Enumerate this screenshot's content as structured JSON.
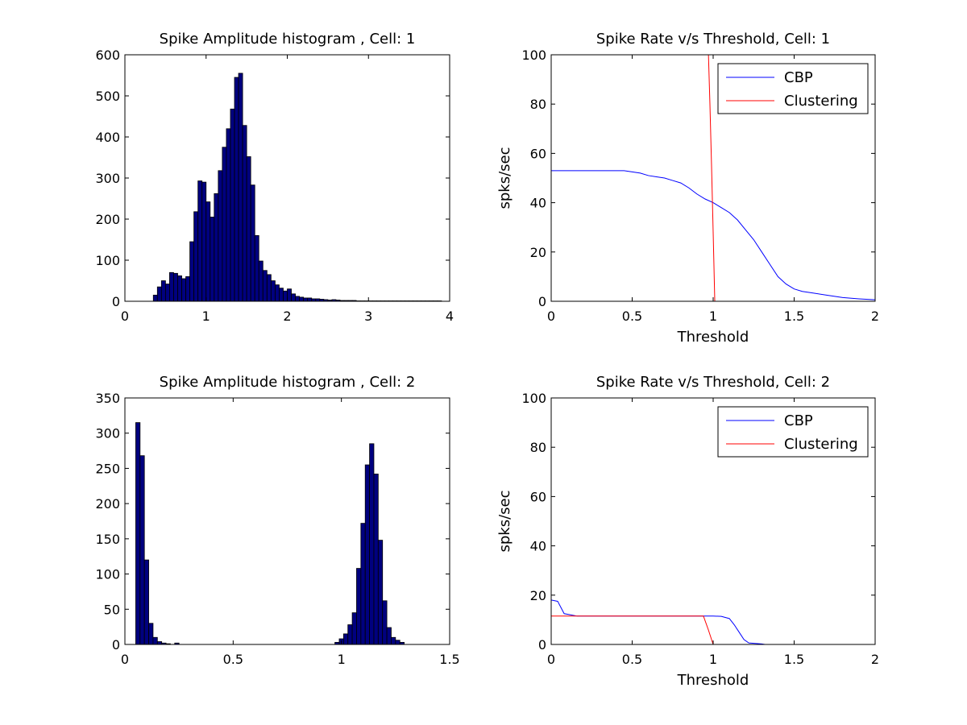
{
  "chart_data": [
    {
      "type": "bar",
      "title": "Spike Amplitude histogram , Cell: 1",
      "xlabel": "",
      "ylabel": "",
      "xlim": [
        0,
        4
      ],
      "ylim": [
        0,
        600
      ],
      "xticks": [
        "0",
        "1",
        "2",
        "3",
        "4"
      ],
      "yticks": [
        "0",
        "100",
        "200",
        "300",
        "400",
        "500",
        "600"
      ],
      "bin_start": 0.35,
      "bin_width": 0.05,
      "values": [
        15,
        35,
        50,
        42,
        70,
        68,
        62,
        55,
        60,
        145,
        218,
        293,
        290,
        242,
        205,
        262,
        318,
        375,
        420,
        468,
        545,
        555,
        428,
        352,
        283,
        160,
        98,
        75,
        65,
        50,
        40,
        32,
        25,
        30,
        18,
        12,
        10,
        8,
        8,
        6,
        6,
        5,
        4,
        3,
        4,
        3,
        2,
        2,
        2,
        2,
        1,
        1,
        1,
        1,
        1,
        1,
        1,
        1,
        1,
        1,
        1,
        1,
        1,
        1,
        1,
        1,
        1,
        1,
        1,
        1,
        1
      ],
      "bar_color": "#00007F",
      "edge_color": "#000000"
    },
    {
      "type": "line",
      "title": "Spike Rate v/s Threshold, Cell: 1",
      "xlabel": "Threshold",
      "ylabel": "spks/sec",
      "xlim": [
        0,
        2
      ],
      "ylim": [
        0,
        100
      ],
      "xticks": [
        "0",
        "0.5",
        "1",
        "1.5",
        "2"
      ],
      "yticks": [
        "0",
        "20",
        "40",
        "60",
        "80",
        "100"
      ],
      "legend_position": "top-right",
      "series": [
        {
          "name": "CBP",
          "color": "#0000FF",
          "x": [
            0,
            0.1,
            0.2,
            0.3,
            0.4,
            0.45,
            0.5,
            0.55,
            0.6,
            0.65,
            0.7,
            0.75,
            0.8,
            0.85,
            0.9,
            0.95,
            1.0,
            1.05,
            1.1,
            1.15,
            1.2,
            1.25,
            1.3,
            1.35,
            1.4,
            1.45,
            1.5,
            1.55,
            1.6,
            1.7,
            1.8,
            1.9,
            2.0
          ],
          "y": [
            53,
            53,
            53,
            53,
            53,
            53,
            52.5,
            52,
            51,
            50.5,
            50,
            49,
            48,
            46,
            43.5,
            41.5,
            40,
            38,
            36,
            33,
            29,
            25,
            20,
            15,
            10,
            7,
            5,
            4,
            3.5,
            2.5,
            1.5,
            1,
            0.6
          ]
        },
        {
          "name": "Clustering",
          "color": "#FF0000",
          "x": [
            0.97,
            0.98,
            0.99,
            1.0,
            1.01
          ],
          "y": [
            102,
            80,
            55,
            28,
            0
          ]
        }
      ]
    },
    {
      "type": "bar",
      "title": "Spike Amplitude histogram , Cell: 2",
      "xlabel": "",
      "ylabel": "",
      "xlim": [
        0,
        1.5
      ],
      "ylim": [
        0,
        350
      ],
      "xticks": [
        "0",
        "0.5",
        "1",
        "1.5"
      ],
      "yticks": [
        "0",
        "50",
        "100",
        "150",
        "200",
        "250",
        "300",
        "350"
      ],
      "bins": [
        {
          "x": 0.05,
          "v": 315
        },
        {
          "x": 0.07,
          "v": 268
        },
        {
          "x": 0.09,
          "v": 120
        },
        {
          "x": 0.11,
          "v": 30
        },
        {
          "x": 0.13,
          "v": 10
        },
        {
          "x": 0.15,
          "v": 4
        },
        {
          "x": 0.17,
          "v": 2
        },
        {
          "x": 0.19,
          "v": 1
        },
        {
          "x": 0.23,
          "v": 2
        },
        {
          "x": 0.97,
          "v": 3
        },
        {
          "x": 0.99,
          "v": 8
        },
        {
          "x": 1.01,
          "v": 15
        },
        {
          "x": 1.03,
          "v": 28
        },
        {
          "x": 1.05,
          "v": 45
        },
        {
          "x": 1.07,
          "v": 108
        },
        {
          "x": 1.09,
          "v": 172
        },
        {
          "x": 1.11,
          "v": 255
        },
        {
          "x": 1.13,
          "v": 285
        },
        {
          "x": 1.15,
          "v": 242
        },
        {
          "x": 1.17,
          "v": 148
        },
        {
          "x": 1.19,
          "v": 62
        },
        {
          "x": 1.21,
          "v": 24
        },
        {
          "x": 1.23,
          "v": 10
        },
        {
          "x": 1.25,
          "v": 6
        },
        {
          "x": 1.27,
          "v": 3
        }
      ],
      "bin_width": 0.02,
      "bar_color": "#00007F",
      "edge_color": "#000000"
    },
    {
      "type": "line",
      "title": "Spike Rate v/s Threshold, Cell: 2",
      "xlabel": "Threshold",
      "ylabel": "spks/sec",
      "xlim": [
        0,
        2
      ],
      "ylim": [
        0,
        100
      ],
      "xticks": [
        "0",
        "0.5",
        "1",
        "1.5",
        "2"
      ],
      "yticks": [
        "0",
        "20",
        "40",
        "60",
        "80",
        "100"
      ],
      "legend_position": "top-right",
      "series": [
        {
          "name": "CBP",
          "color": "#0000FF",
          "x": [
            0,
            0.04,
            0.08,
            0.12,
            0.16,
            0.2,
            0.4,
            0.6,
            0.8,
            1.0,
            1.05,
            1.1,
            1.13,
            1.16,
            1.19,
            1.22,
            1.26,
            1.3,
            1.32
          ],
          "y": [
            18,
            17.5,
            12.5,
            12,
            11.5,
            11.5,
            11.5,
            11.5,
            11.5,
            11.5,
            11.4,
            10.5,
            8,
            5,
            2,
            0.6,
            0.4,
            0.2,
            0
          ]
        },
        {
          "name": "Clustering",
          "color": "#FF0000",
          "x": [
            0,
            0.2,
            0.4,
            0.6,
            0.8,
            0.94,
            0.97,
            1.0
          ],
          "y": [
            11.5,
            11.5,
            11.5,
            11.5,
            11.5,
            11.5,
            6,
            0
          ]
        }
      ]
    }
  ]
}
